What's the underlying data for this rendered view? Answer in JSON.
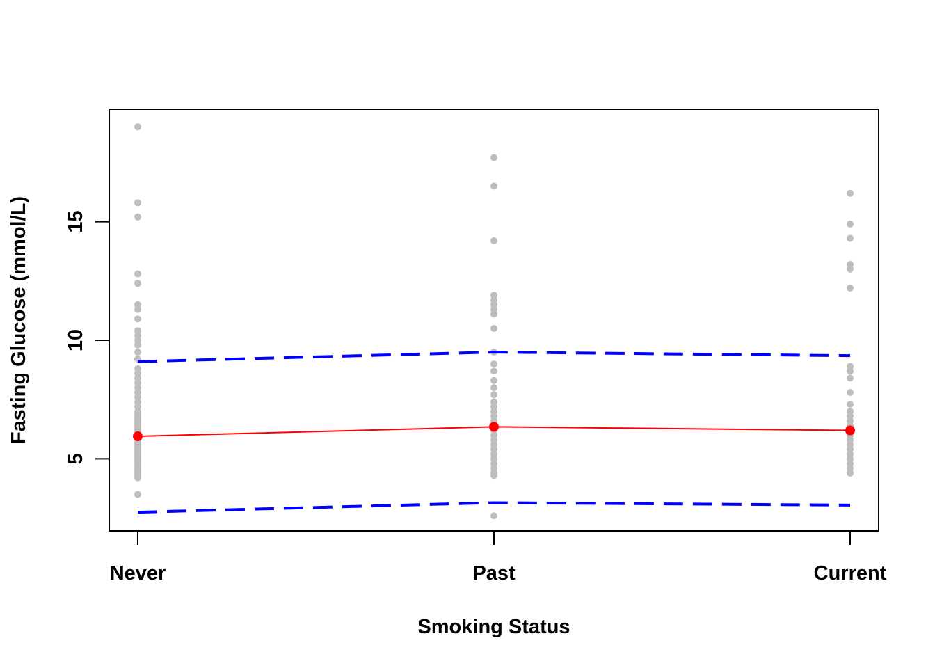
{
  "chart_data": {
    "type": "scatter",
    "title": "",
    "xlabel": "Smoking Status",
    "ylabel": "Fasting Glucose (mmol/L)",
    "categories": [
      "Never",
      "Past",
      "Current"
    ],
    "yticks": [
      5,
      10,
      15
    ],
    "ylim": [
      2.0,
      19.8
    ],
    "grid": false,
    "legend": "none",
    "colors": {
      "points": "#BEBEBE",
      "mean": "#FF0000",
      "limits": "#0000FF",
      "axis": "#000000"
    },
    "series": [
      {
        "type": "points",
        "values": [
          [
            19.0,
            15.8,
            15.2,
            12.8,
            12.4,
            11.5,
            11.3,
            10.9,
            10.4,
            10.2,
            10.0,
            9.8,
            9.5,
            9.2,
            8.8,
            8.6,
            8.4,
            8.2,
            8.0,
            7.8,
            7.6,
            7.4,
            7.2,
            7.0,
            6.9,
            6.8,
            6.7,
            6.6,
            6.5,
            6.4,
            6.3,
            6.2,
            6.1,
            6.0,
            5.9,
            5.8,
            5.7,
            5.6,
            5.5,
            5.4,
            5.3,
            5.2,
            5.1,
            5.0,
            4.9,
            4.8,
            4.7,
            4.6,
            4.5,
            4.4,
            4.3,
            4.2,
            3.5
          ],
          [
            17.7,
            16.5,
            14.2,
            11.9,
            11.7,
            11.5,
            11.3,
            11.1,
            10.5,
            9.5,
            9.0,
            8.7,
            8.3,
            8.0,
            7.7,
            7.4,
            7.2,
            7.0,
            6.8,
            6.6,
            6.4,
            6.2,
            6.0,
            5.8,
            5.6,
            5.4,
            5.2,
            5.0,
            4.8,
            4.6,
            4.4,
            4.3,
            2.6
          ],
          [
            16.2,
            14.9,
            14.3,
            13.2,
            13.0,
            12.2,
            8.9,
            8.7,
            8.4,
            7.8,
            7.3,
            7.0,
            6.8,
            6.6,
            6.4,
            6.2,
            6.0,
            5.8,
            5.6,
            5.4,
            5.2,
            5.0,
            4.8,
            4.6,
            4.4
          ]
        ]
      },
      {
        "type": "mean",
        "values": [
          5.95,
          6.35,
          6.2
        ]
      },
      {
        "type": "upper",
        "values": [
          9.1,
          9.5,
          9.35
        ]
      },
      {
        "type": "lower",
        "values": [
          2.75,
          3.15,
          3.05
        ]
      }
    ]
  }
}
